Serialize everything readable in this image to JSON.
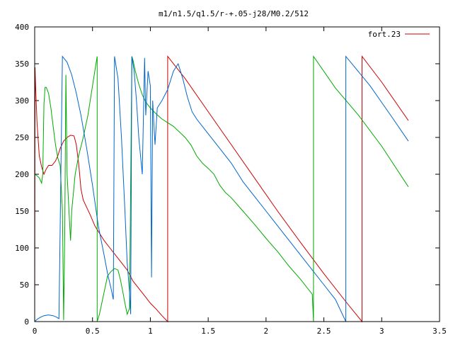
{
  "chart_data": {
    "type": "line",
    "title": "m1/n1.5/q1.5/r-+.05-j28/M0.2/512",
    "xlabel": "",
    "ylabel": "",
    "xlim": [
      0,
      3.5
    ],
    "ylim": [
      0,
      400
    ],
    "x_ticks": [
      0,
      0.5,
      1,
      1.5,
      2,
      2.5,
      3,
      3.5
    ],
    "x_tick_labels": [
      "0",
      "0.5",
      "1",
      "1.5",
      "2",
      "2.5",
      "3",
      "3.5"
    ],
    "y_ticks": [
      0,
      50,
      100,
      150,
      200,
      250,
      300,
      350,
      400
    ],
    "y_tick_labels": [
      "0",
      "50",
      "100",
      "150",
      "200",
      "250",
      "300",
      "350",
      "400"
    ],
    "grid": false,
    "legend_position": "top-right",
    "series": [
      {
        "name": "fort.23",
        "color": "#cc0000",
        "points": [
          [
            0.0,
            0
          ],
          [
            0.003,
            345
          ],
          [
            0.008,
            320
          ],
          [
            0.02,
            270
          ],
          [
            0.04,
            225
          ],
          [
            0.06,
            210
          ],
          [
            0.08,
            200
          ],
          [
            0.1,
            207
          ],
          [
            0.12,
            212
          ],
          [
            0.15,
            212
          ],
          [
            0.18,
            218
          ],
          [
            0.2,
            225
          ],
          [
            0.22,
            235
          ],
          [
            0.25,
            245
          ],
          [
            0.28,
            250
          ],
          [
            0.31,
            253
          ],
          [
            0.34,
            252
          ],
          [
            0.36,
            240
          ],
          [
            0.38,
            215
          ],
          [
            0.4,
            180
          ],
          [
            0.42,
            165
          ],
          [
            0.45,
            155
          ],
          [
            0.48,
            145
          ],
          [
            0.52,
            130
          ],
          [
            0.56,
            120
          ],
          [
            0.6,
            110
          ],
          [
            0.65,
            100
          ],
          [
            0.7,
            90
          ],
          [
            0.75,
            80
          ],
          [
            0.8,
            70
          ],
          [
            0.85,
            55
          ],
          [
            0.9,
            45
          ],
          [
            0.95,
            35
          ],
          [
            1.0,
            25
          ],
          [
            1.05,
            17
          ],
          [
            1.1,
            8
          ],
          [
            1.15,
            0
          ],
          [
            1.15,
            360
          ],
          [
            1.3,
            330
          ],
          [
            1.5,
            285
          ],
          [
            1.7,
            240
          ],
          [
            1.9,
            195
          ],
          [
            2.1,
            150
          ],
          [
            2.3,
            107
          ],
          [
            2.5,
            65
          ],
          [
            2.7,
            25
          ],
          [
            2.83,
            0
          ],
          [
            2.83,
            360
          ],
          [
            3.0,
            325
          ],
          [
            3.23,
            273
          ]
        ]
      },
      {
        "name": "",
        "color": "#00aa00",
        "points": [
          [
            0.0,
            200
          ],
          [
            0.02,
            198
          ],
          [
            0.04,
            195
          ],
          [
            0.06,
            188
          ],
          [
            0.07,
            200
          ],
          [
            0.08,
            295
          ],
          [
            0.09,
            318
          ],
          [
            0.1,
            318
          ],
          [
            0.12,
            310
          ],
          [
            0.14,
            290
          ],
          [
            0.16,
            265
          ],
          [
            0.18,
            240
          ],
          [
            0.2,
            222
          ],
          [
            0.22,
            212
          ],
          [
            0.24,
            150
          ],
          [
            0.25,
            2
          ],
          [
            0.26,
            120
          ],
          [
            0.27,
            335
          ],
          [
            0.28,
            200
          ],
          [
            0.3,
            140
          ],
          [
            0.31,
            110
          ],
          [
            0.32,
            150
          ],
          [
            0.35,
            200
          ],
          [
            0.38,
            225
          ],
          [
            0.42,
            250
          ],
          [
            0.46,
            280
          ],
          [
            0.5,
            320
          ],
          [
            0.53,
            350
          ],
          [
            0.54,
            360
          ],
          [
            0.54,
            0
          ],
          [
            0.56,
            10
          ],
          [
            0.6,
            40
          ],
          [
            0.63,
            62
          ],
          [
            0.66,
            68
          ],
          [
            0.69,
            72
          ],
          [
            0.72,
            70
          ],
          [
            0.74,
            58
          ],
          [
            0.76,
            42
          ],
          [
            0.78,
            25
          ],
          [
            0.8,
            10
          ],
          [
            0.82,
            18
          ],
          [
            0.84,
            360
          ],
          [
            0.85,
            355
          ],
          [
            0.87,
            340
          ],
          [
            0.9,
            322
          ],
          [
            0.93,
            308
          ],
          [
            0.96,
            298
          ],
          [
            1.0,
            290
          ],
          [
            1.05,
            282
          ],
          [
            1.1,
            275
          ],
          [
            1.2,
            265
          ],
          [
            1.3,
            250
          ],
          [
            1.35,
            240
          ],
          [
            1.4,
            225
          ],
          [
            1.45,
            215
          ],
          [
            1.5,
            208
          ],
          [
            1.55,
            200
          ],
          [
            1.6,
            185
          ],
          [
            1.65,
            175
          ],
          [
            1.7,
            168
          ],
          [
            1.8,
            150
          ],
          [
            1.9,
            132
          ],
          [
            2.0,
            113
          ],
          [
            2.1,
            95
          ],
          [
            2.2,
            75
          ],
          [
            2.3,
            57
          ],
          [
            2.4,
            37
          ],
          [
            2.41,
            0
          ],
          [
            2.41,
            360
          ],
          [
            2.6,
            317
          ],
          [
            2.8,
            280
          ],
          [
            3.0,
            238
          ],
          [
            3.23,
            183
          ]
        ]
      },
      {
        "name": "",
        "color": "#0066cc",
        "points": [
          [
            0.0,
            0
          ],
          [
            0.02,
            3
          ],
          [
            0.05,
            6
          ],
          [
            0.08,
            8
          ],
          [
            0.12,
            9
          ],
          [
            0.16,
            8
          ],
          [
            0.19,
            6
          ],
          [
            0.21,
            4
          ],
          [
            0.24,
            360
          ],
          [
            0.28,
            352
          ],
          [
            0.32,
            335
          ],
          [
            0.36,
            310
          ],
          [
            0.4,
            280
          ],
          [
            0.45,
            235
          ],
          [
            0.5,
            185
          ],
          [
            0.55,
            130
          ],
          [
            0.6,
            90
          ],
          [
            0.63,
            65
          ],
          [
            0.66,
            45
          ],
          [
            0.68,
            30
          ],
          [
            0.69,
            360
          ],
          [
            0.72,
            330
          ],
          [
            0.75,
            250
          ],
          [
            0.78,
            150
          ],
          [
            0.8,
            80
          ],
          [
            0.82,
            40
          ],
          [
            0.83,
            10
          ],
          [
            0.84,
            360
          ],
          [
            0.86,
            340
          ],
          [
            0.88,
            300
          ],
          [
            0.9,
            250
          ],
          [
            0.93,
            200
          ],
          [
            0.95,
            358
          ],
          [
            0.96,
            280
          ],
          [
            0.98,
            340
          ],
          [
            1.0,
            320
          ],
          [
            1.01,
            60
          ],
          [
            1.02,
            300
          ],
          [
            1.04,
            240
          ],
          [
            1.06,
            290
          ],
          [
            1.1,
            300
          ],
          [
            1.15,
            315
          ],
          [
            1.2,
            340
          ],
          [
            1.24,
            350
          ],
          [
            1.28,
            330
          ],
          [
            1.32,
            305
          ],
          [
            1.36,
            285
          ],
          [
            1.4,
            275
          ],
          [
            1.45,
            265
          ],
          [
            1.5,
            255
          ],
          [
            1.6,
            235
          ],
          [
            1.7,
            215
          ],
          [
            1.8,
            190
          ],
          [
            1.9,
            170
          ],
          [
            2.0,
            150
          ],
          [
            2.1,
            130
          ],
          [
            2.2,
            110
          ],
          [
            2.3,
            90
          ],
          [
            2.4,
            70
          ],
          [
            2.5,
            50
          ],
          [
            2.6,
            30
          ],
          [
            2.69,
            0
          ],
          [
            2.69,
            360
          ],
          [
            2.9,
            320
          ],
          [
            3.1,
            275
          ],
          [
            3.23,
            245
          ]
        ]
      }
    ]
  },
  "legend": {
    "label": "fort.23",
    "color": "#cc0000"
  }
}
